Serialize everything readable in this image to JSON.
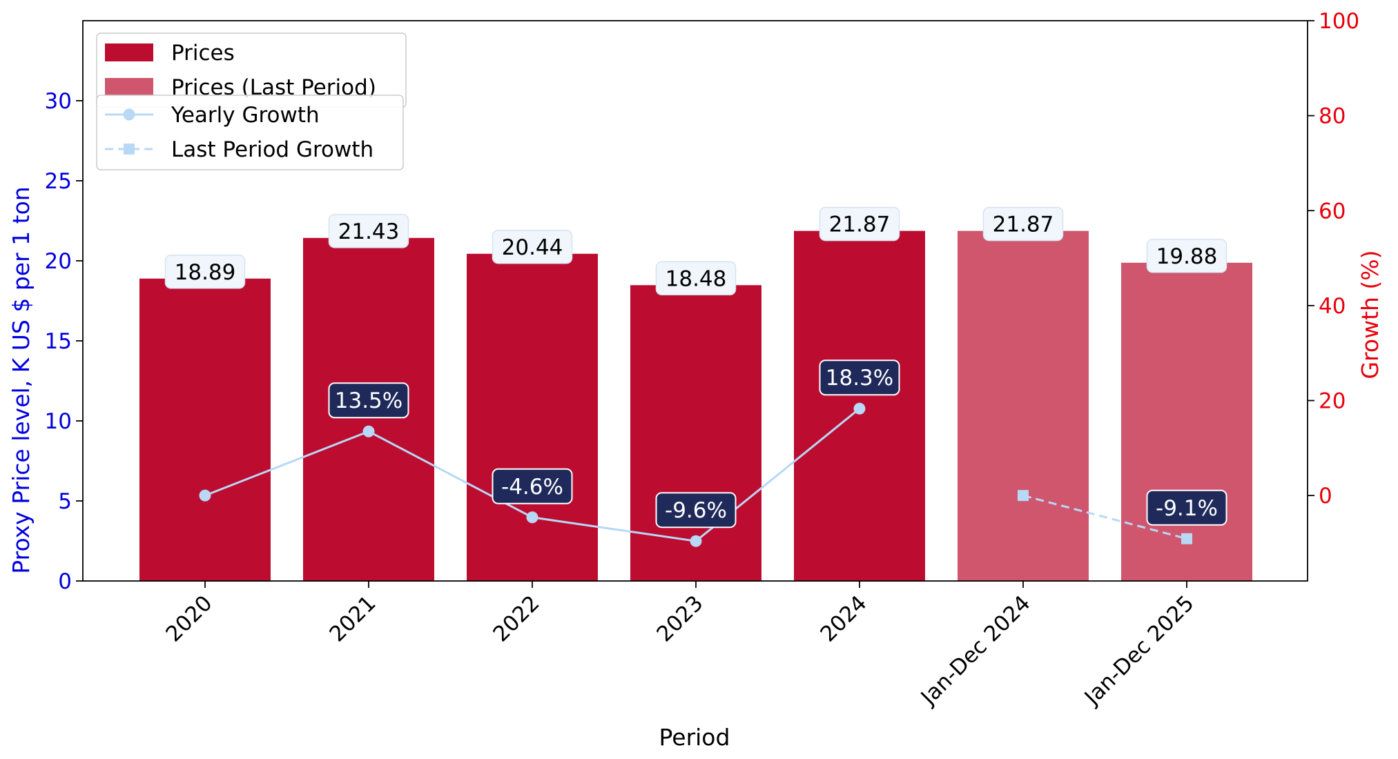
{
  "chart_data": {
    "type": "bar",
    "categories": [
      "2020",
      "2021",
      "2022",
      "2023",
      "2024",
      "Jan-Dec 2024",
      "Jan-Dec 2025"
    ],
    "series": [
      {
        "name": "Prices",
        "kind": "bar",
        "axis": "left",
        "color": "#bc0d31",
        "values": [
          18.89,
          21.43,
          20.44,
          18.48,
          21.87,
          null,
          null
        ],
        "labels": [
          "18.89",
          "21.43",
          "20.44",
          "18.48",
          "21.87",
          null,
          null
        ]
      },
      {
        "name": "Prices (Last Period)",
        "kind": "bar",
        "axis": "left",
        "color": "#d0566e",
        "values": [
          null,
          null,
          null,
          null,
          null,
          21.87,
          19.88
        ],
        "labels": [
          null,
          null,
          null,
          null,
          null,
          "21.87",
          "19.88"
        ]
      },
      {
        "name": "Yearly Growth",
        "kind": "line",
        "axis": "right",
        "color": "#b8d8f6",
        "marker": "circle",
        "dashed": false,
        "values": [
          0.0,
          13.5,
          -4.6,
          -9.6,
          18.3,
          null,
          null
        ],
        "labels": [
          null,
          "13.5%",
          "-4.6%",
          "-9.6%",
          "18.3%",
          null,
          null
        ]
      },
      {
        "name": "Last Period Growth",
        "kind": "line",
        "axis": "right",
        "color": "#b8d8f6",
        "marker": "square",
        "dashed": true,
        "values": [
          null,
          null,
          null,
          null,
          null,
          0.0,
          -9.1
        ],
        "labels": [
          null,
          null,
          null,
          null,
          null,
          null,
          "-9.1%"
        ]
      }
    ],
    "xlabel": "Period",
    "ylabel": "Proxy Price level, K US $ per 1 ton",
    "ylabel_right": "Growth (%)",
    "ylim": [
      0,
      35
    ],
    "ylim_right": [
      -18,
      100
    ],
    "yticks": [
      0,
      5,
      10,
      15,
      20,
      25,
      30
    ],
    "yticks_right": [
      0,
      20,
      40,
      60,
      80,
      100
    ],
    "grid": false,
    "legend_placement": "top-left",
    "colors": {
      "left_axis": "#0000dd",
      "right_axis": "#e8000b",
      "bar_label_bg": "#f0f6fc",
      "growth_label_bg": "#1f2a5a"
    }
  }
}
